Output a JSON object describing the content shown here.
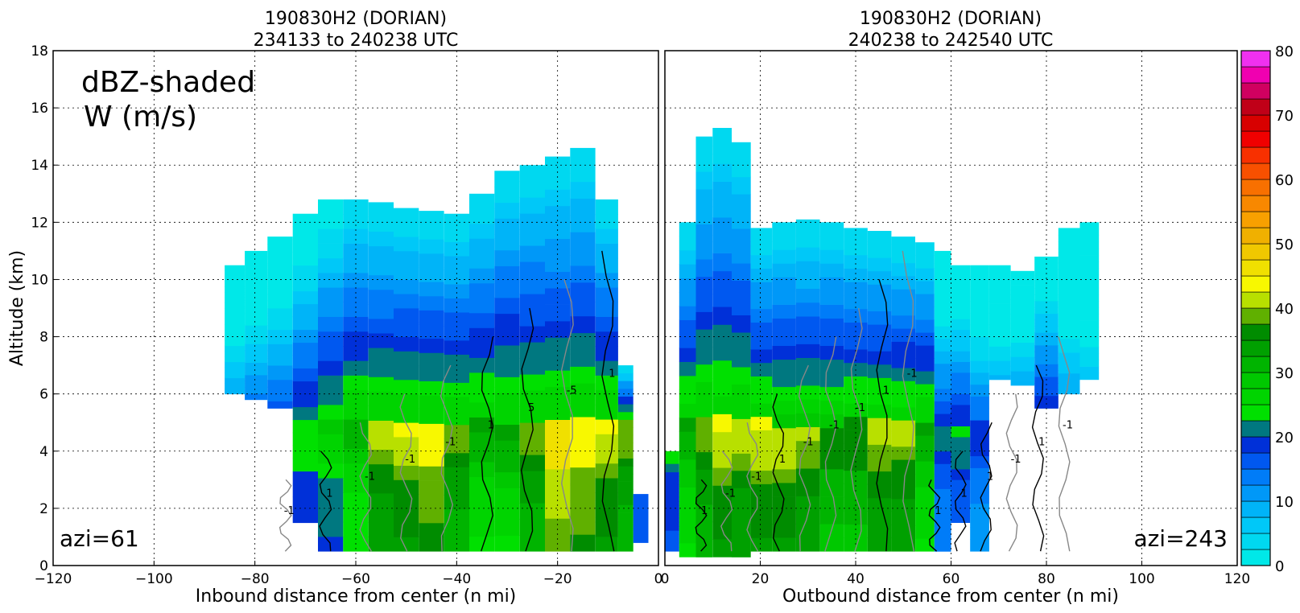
{
  "chart_data": [
    {
      "type": "heatmap",
      "title": "190830H2 (DORIAN)",
      "subtitle": "234133 to 240238 UTC",
      "xlabel": "Inbound distance from center (n mi)",
      "ylabel": "Altitude (km)",
      "xlim": [
        -120,
        0
      ],
      "ylim": [
        0,
        18
      ],
      "xticks": [
        "-120",
        "-100",
        "-80",
        "-60",
        "-40",
        "-20",
        "0"
      ],
      "yticks": [
        "0",
        "2",
        "4",
        "6",
        "8",
        "10",
        "12",
        "14",
        "16",
        "18"
      ],
      "grid": true,
      "annotations": {
        "legend_line1": "dBZ-shaded",
        "legend_line2": "W (m/s)",
        "azimuth": "azi=61"
      },
      "contour_labels": [
        "-1",
        "1",
        "-1",
        "-1",
        "-1",
        "1",
        "5",
        "-5",
        "1"
      ],
      "reflectivity_profile": [
        {
          "x": -84,
          "base": 6.0,
          "top": 10.5,
          "max_dbz": 15
        },
        {
          "x": -80,
          "base": 5.8,
          "top": 11.0,
          "max_dbz": 17
        },
        {
          "x": -75,
          "base": 5.5,
          "top": 11.5,
          "max_dbz": 18
        },
        {
          "x": -70,
          "base": 1.5,
          "top": 12.3,
          "max_dbz": 22
        },
        {
          "x": -65,
          "base": 0.5,
          "top": 12.8,
          "max_dbz": 25
        },
        {
          "x": -60,
          "base": 0.5,
          "top": 12.8,
          "max_dbz": 28
        },
        {
          "x": -55,
          "base": 0.5,
          "top": 12.7,
          "max_dbz": 38
        },
        {
          "x": -50,
          "base": 0.5,
          "top": 12.5,
          "max_dbz": 40
        },
        {
          "x": -45,
          "base": 0.5,
          "top": 12.4,
          "max_dbz": 42
        },
        {
          "x": -40,
          "base": 0.5,
          "top": 12.3,
          "max_dbz": 36
        },
        {
          "x": -35,
          "base": 0.5,
          "top": 13.0,
          "max_dbz": 30
        },
        {
          "x": -30,
          "base": 0.5,
          "top": 13.8,
          "max_dbz": 30
        },
        {
          "x": -25,
          "base": 0.5,
          "top": 14.0,
          "max_dbz": 36
        },
        {
          "x": -20,
          "base": 0.5,
          "top": 14.3,
          "max_dbz": 44
        },
        {
          "x": -15,
          "base": 0.5,
          "top": 14.6,
          "max_dbz": 42
        },
        {
          "x": -10,
          "base": 0.5,
          "top": 12.8,
          "max_dbz": 40
        },
        {
          "x": -6,
          "base": 0.5,
          "top": 7.0,
          "max_dbz": 36
        },
        {
          "x": -4,
          "base": 0.8,
          "top": 2.5,
          "max_dbz": 20
        }
      ]
    },
    {
      "type": "heatmap",
      "title": "190830H2 (DORIAN)",
      "subtitle": "240238 to 242540 UTC",
      "xlabel": "Outbound distance from center (n mi)",
      "ylabel": "",
      "xlim": [
        0,
        120
      ],
      "ylim": [
        0,
        18
      ],
      "xticks": [
        "0",
        "20",
        "40",
        "60",
        "80",
        "100",
        "120"
      ],
      "yticks": [],
      "grid": true,
      "annotations": {
        "azimuth": "azi=243"
      },
      "contour_labels": [
        "1",
        "-1",
        "-1",
        "1",
        "-1",
        "-1",
        "-1",
        "1",
        "-1",
        "1",
        "1",
        "1",
        "-1",
        "1",
        "-1"
      ],
      "reflectivity_profile": [
        {
          "x": 1,
          "base": 0.5,
          "top": 4.0,
          "max_dbz": 22
        },
        {
          "x": 5,
          "base": 0.3,
          "top": 12.0,
          "max_dbz": 30
        },
        {
          "x": 8,
          "base": 0.3,
          "top": 15.0,
          "max_dbz": 36
        },
        {
          "x": 12,
          "base": 0.3,
          "top": 15.3,
          "max_dbz": 40
        },
        {
          "x": 16,
          "base": 0.3,
          "top": 14.8,
          "max_dbz": 38
        },
        {
          "x": 20,
          "base": 0.5,
          "top": 11.8,
          "max_dbz": 40
        },
        {
          "x": 25,
          "base": 0.5,
          "top": 12.0,
          "max_dbz": 40
        },
        {
          "x": 30,
          "base": 0.5,
          "top": 12.1,
          "max_dbz": 38
        },
        {
          "x": 35,
          "base": 0.5,
          "top": 12.0,
          "max_dbz": 34
        },
        {
          "x": 40,
          "base": 0.5,
          "top": 11.8,
          "max_dbz": 34
        },
        {
          "x": 45,
          "base": 0.5,
          "top": 11.7,
          "max_dbz": 38
        },
        {
          "x": 50,
          "base": 0.5,
          "top": 11.5,
          "max_dbz": 38
        },
        {
          "x": 55,
          "base": 0.5,
          "top": 11.3,
          "max_dbz": 30
        },
        {
          "x": 58,
          "base": 0.5,
          "top": 11.0,
          "max_dbz": 18
        },
        {
          "x": 62,
          "base": 1.5,
          "top": 10.5,
          "max_dbz": 20
        },
        {
          "x": 66,
          "base": 0.5,
          "top": 10.5,
          "max_dbz": 16
        },
        {
          "x": 70,
          "base": 6.5,
          "top": 10.5,
          "max_dbz": 15
        },
        {
          "x": 75,
          "base": 6.3,
          "top": 10.3,
          "max_dbz": 16
        },
        {
          "x": 80,
          "base": 5.5,
          "top": 10.8,
          "max_dbz": 22
        },
        {
          "x": 85,
          "base": 6.0,
          "top": 11.8,
          "max_dbz": 14
        },
        {
          "x": 89,
          "base": 6.5,
          "top": 12.0,
          "max_dbz": 12
        }
      ]
    }
  ],
  "colorbar": {
    "ticks": [
      "0",
      "10",
      "20",
      "30",
      "40",
      "50",
      "60",
      "70",
      "80"
    ],
    "min": 0,
    "max": 80,
    "step": 2.5,
    "colors": [
      "#00e8e8",
      "#00d8f0",
      "#00c8f8",
      "#00b4f8",
      "#0098f8",
      "#007cf8",
      "#0058f0",
      "#0030d8",
      "#007880",
      "#00e000",
      "#00d400",
      "#00c800",
      "#00b400",
      "#00a000",
      "#008c00",
      "#60b000",
      "#b8e000",
      "#f8f800",
      "#f0e000",
      "#f0c800",
      "#f0b000",
      "#f8a000",
      "#f88800",
      "#f87000",
      "#f85000",
      "#f83000",
      "#f00000",
      "#d80000",
      "#c00018",
      "#d00060",
      "#f000b0",
      "#f030f0",
      "#c050e0",
      "#a050c8",
      "#704090",
      "#2a1f3a",
      "#000000"
    ],
    "reflectivity_colors": {
      "cyan": "#00e8e8",
      "blue": "#0040e0",
      "green": "#00dc00",
      "yellow": "#f8f000",
      "orange": "#f0b000"
    }
  }
}
